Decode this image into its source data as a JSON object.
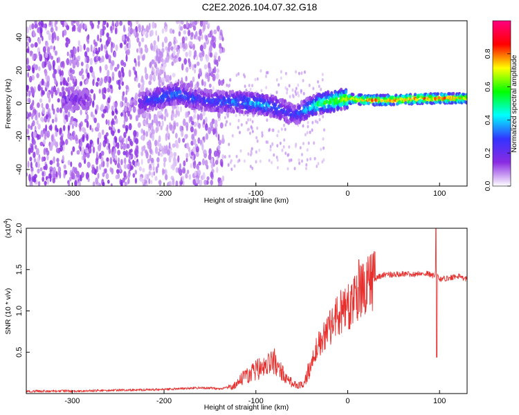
{
  "title": "C2E2.2026.104.07.32.G18",
  "chart_data": [
    {
      "type": "heatmap",
      "title": "C2E2.2026.104.07.32.G18",
      "xlabel": "Height of straight line (km)",
      "ylabel": "Frequency (Hz)",
      "xlim": [
        -350,
        130
      ],
      "ylim": [
        -50,
        50
      ],
      "xticks": [
        -300,
        -200,
        -100,
        0,
        100
      ],
      "yticks": [
        -40,
        -20,
        0,
        20,
        40
      ],
      "xtick_labels": [
        "-300",
        "-200",
        "-100",
        "0",
        "100"
      ],
      "ytick_labels": [
        "-40",
        "-20",
        "0",
        "20",
        "40"
      ],
      "colorbar": {
        "label": "Normalized spectral amplitude",
        "range": [
          0.0,
          1.0
        ],
        "ticks": [
          0.0,
          0.2,
          0.4,
          0.6,
          0.8
        ],
        "tick_labels": [
          "0.0",
          "0.2",
          "0.4",
          "0.6",
          "0.8"
        ],
        "colors": [
          "#ffffff",
          "#8a2be2",
          "#3333ff",
          "#00ffff",
          "#00ff00",
          "#ffff00",
          "#ff0000",
          "#ff0080"
        ]
      },
      "ridge": {
        "x": [
          -300,
          -225,
          -215,
          -200,
          -185,
          -170,
          -155,
          -140,
          -120,
          -100,
          -80,
          -70,
          -60,
          -50,
          -40,
          -30,
          -20,
          -10,
          0,
          20,
          50,
          80,
          100,
          130
        ],
        "y": [
          3,
          0,
          2,
          4,
          6,
          3,
          2,
          1,
          1,
          0,
          -2,
          -4,
          -7,
          -5,
          -2,
          0,
          1,
          2,
          3,
          2,
          2,
          3,
          3,
          3
        ],
        "amplitude": [
          0.15,
          0.2,
          0.3,
          0.35,
          0.35,
          0.3,
          0.25,
          0.3,
          0.35,
          0.4,
          0.35,
          0.3,
          0.25,
          0.35,
          0.45,
          0.55,
          0.6,
          0.65,
          0.7,
          0.8,
          0.85,
          0.85,
          0.85,
          0.75
        ]
      }
    },
    {
      "type": "line",
      "xlabel": "Height of straight line (km)",
      "ylabel": "SNR (10 * v/v)",
      "scale_label": "(x10",
      "scale_exp": "4",
      "scale_close": ")",
      "xlim": [
        -350,
        130
      ],
      "ylim": [
        0,
        2.0
      ],
      "xticks": [
        -300,
        -200,
        -100,
        0,
        100
      ],
      "yticks": [
        0.5,
        1.0,
        1.5,
        2.0
      ],
      "xtick_labels": [
        "-300",
        "-200",
        "-100",
        "0",
        "100"
      ],
      "ytick_labels": [
        "0.5",
        "1.0",
        "1.5",
        "2.0"
      ],
      "color": "#e8312f",
      "series": [
        {
          "name": "SNR",
          "x": [
            -350,
            -300,
            -250,
            -200,
            -180,
            -160,
            -140,
            -125,
            -115,
            -105,
            -95,
            -85,
            -80,
            -75,
            -70,
            -62,
            -55,
            -48,
            -42,
            -38,
            -34,
            -30,
            -26,
            -22,
            -18,
            -14,
            -10,
            -6,
            -2,
            2,
            6,
            10,
            14,
            18,
            22,
            26,
            30,
            35,
            40,
            50,
            60,
            70,
            80,
            88,
            94,
            96,
            98,
            102,
            110,
            120,
            130
          ],
          "y": [
            0.03,
            0.03,
            0.04,
            0.05,
            0.06,
            0.07,
            0.06,
            0.08,
            0.18,
            0.25,
            0.32,
            0.38,
            0.42,
            0.3,
            0.22,
            0.14,
            0.1,
            0.1,
            0.3,
            0.45,
            0.55,
            0.62,
            0.68,
            0.75,
            0.82,
            0.9,
            0.98,
            1.0,
            1.02,
            1.05,
            1.1,
            1.18,
            1.22,
            1.25,
            1.3,
            1.35,
            1.38,
            1.42,
            1.44,
            1.44,
            1.45,
            1.44,
            1.45,
            1.45,
            1.42,
            1.5,
            1.4,
            1.38,
            1.4,
            1.42,
            1.38
          ]
        }
      ],
      "spikes": [
        {
          "x": 12,
          "y": 1.62
        },
        {
          "x": 96,
          "y": 2.0
        },
        {
          "x": 97,
          "y": 0.44
        }
      ]
    }
  ]
}
